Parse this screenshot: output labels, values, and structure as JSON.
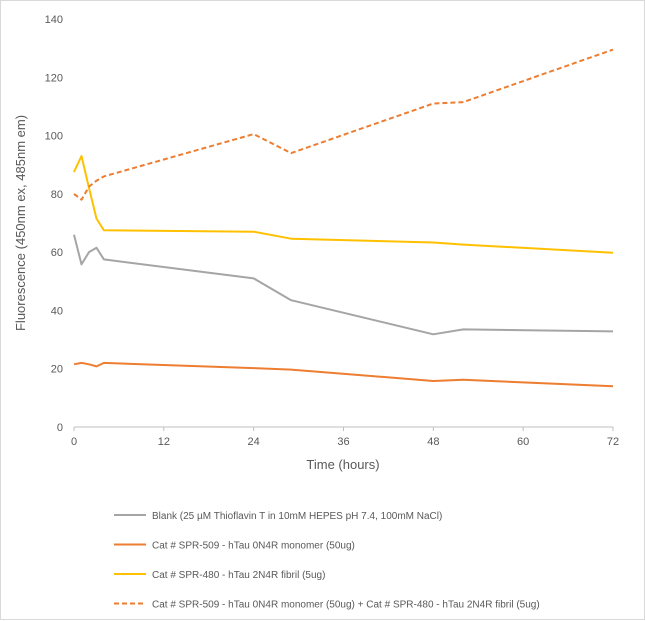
{
  "chart_data": {
    "type": "line",
    "title": "",
    "xlabel": "Time (hours)",
    "ylabel": "Fluorescence (450nm ex, 485nm em)",
    "xlim": [
      0,
      72
    ],
    "ylim": [
      0,
      140
    ],
    "xticks": [
      0,
      12,
      24,
      36,
      48,
      60,
      72
    ],
    "yticks": [
      0,
      20,
      40,
      60,
      80,
      100,
      120,
      140
    ],
    "grid": false,
    "legend_position": "bottom",
    "series": [
      {
        "name": "Blank (25 µM Thioflavin T in 10mM HEPES pH 7.4, 100mM NaCl)",
        "color": "#a5a5a5",
        "dash": "solid",
        "x": [
          0,
          1,
          2,
          3,
          4,
          24,
          29,
          48,
          52,
          72
        ],
        "y": [
          66,
          55.8,
          60,
          61.5,
          57.5,
          51,
          43.5,
          31.8,
          33.5,
          32.8
        ]
      },
      {
        "name": "Cat # SPR-509 - hTau 0N4R monomer (50ug)",
        "color": "#ed7d31",
        "dash": "solid",
        "x": [
          0,
          1,
          2,
          3,
          4,
          24,
          29,
          48,
          52,
          72
        ],
        "y": [
          21.5,
          22,
          21.5,
          20.8,
          22,
          20.2,
          19.7,
          15.8,
          16.2,
          14
        ]
      },
      {
        "name": "Cat # SPR-480 - hTau 2N4R fibril (5ug)",
        "color": "#ffc000",
        "dash": "solid",
        "x": [
          0,
          1,
          2,
          3,
          4,
          24,
          29,
          48,
          52,
          72
        ],
        "y": [
          87.5,
          93,
          82,
          71.5,
          67.5,
          67,
          64.6,
          63.3,
          62.6,
          59.8
        ]
      },
      {
        "name": "Cat # SPR-509 - hTau 0N4R monomer (50ug) + Cat # SPR-480 - hTau 2N4R fibril (5ug)",
        "color": "#ed7d31",
        "dash": "dashed",
        "x": [
          0,
          1,
          2,
          3,
          4,
          24,
          29,
          48,
          52,
          72
        ],
        "y": [
          80,
          78,
          82.5,
          84.5,
          86,
          100.5,
          94,
          111,
          111.5,
          129.5
        ]
      }
    ]
  }
}
